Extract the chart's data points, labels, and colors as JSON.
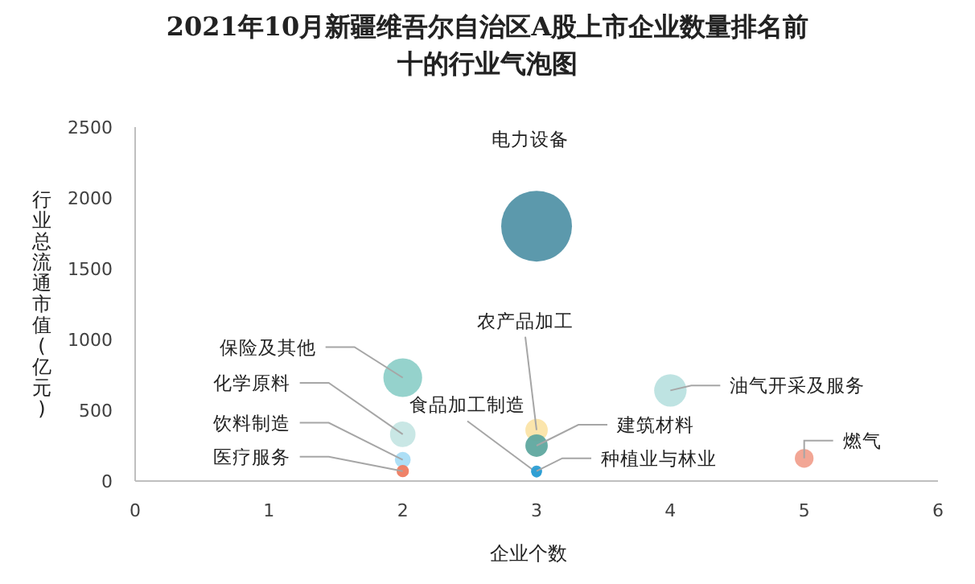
{
  "chart_data": {
    "type": "bubble",
    "title": "2021年10月新疆维吾尔自治区A股上市企业数量排名前十的行业气泡图",
    "xlabel": "企业个数",
    "ylabel": "行业总流通市值(亿元)",
    "xlim": [
      0,
      6
    ],
    "xticks": [
      0,
      1,
      2,
      3,
      4,
      5,
      6
    ],
    "ylim": [
      0,
      2500
    ],
    "yticks": [
      0,
      500,
      1000,
      1500,
      2000,
      2500
    ],
    "grid": false,
    "series": [
      {
        "name": "电力设备",
        "color": "#5393a8",
        "x": [
          3
        ],
        "values": [
          1800
        ],
        "sizes": [
          1
        ]
      },
      {
        "name": "保险及其他",
        "color": "#8fd0c9",
        "x": [
          2
        ],
        "values": [
          730
        ],
        "sizes": [
          0.3
        ]
      },
      {
        "name": "化学原料",
        "color": "#c6e6e4",
        "x": [
          2
        ],
        "values": [
          330
        ],
        "sizes": [
          0.13
        ]
      },
      {
        "name": "饮料制造",
        "color": "#a9ddf5",
        "x": [
          2
        ],
        "values": [
          150
        ],
        "sizes": [
          0.05
        ]
      },
      {
        "name": "医疗服务",
        "color": "#ee7b60",
        "x": [
          2
        ],
        "values": [
          70
        ],
        "sizes": [
          0.03
        ]
      },
      {
        "name": "农产品加工",
        "color": "#fbe4a8",
        "x": [
          3
        ],
        "values": [
          360
        ],
        "sizes": [
          0.1
        ]
      },
      {
        "name": "食品加工制造",
        "color": "#2e9fd4",
        "x": [
          3
        ],
        "values": [
          60
        ],
        "sizes": [
          0.02
        ]
      },
      {
        "name": "建筑材料",
        "color": "#5fa89f",
        "x": [
          3
        ],
        "values": [
          250
        ],
        "sizes": [
          0.1
        ]
      },
      {
        "name": "种植业与林业",
        "color": "#2e9fd4",
        "x": [
          3
        ],
        "values": [
          70
        ],
        "sizes": [
          0.025
        ]
      },
      {
        "name": "油气开采及服务",
        "color": "#bae2e0",
        "x": [
          4
        ],
        "values": [
          640
        ],
        "sizes": [
          0.21
        ]
      },
      {
        "name": "燃气",
        "color": "#f1a18f",
        "x": [
          5
        ],
        "values": [
          160
        ],
        "sizes": [
          0.07
        ]
      }
    ]
  }
}
